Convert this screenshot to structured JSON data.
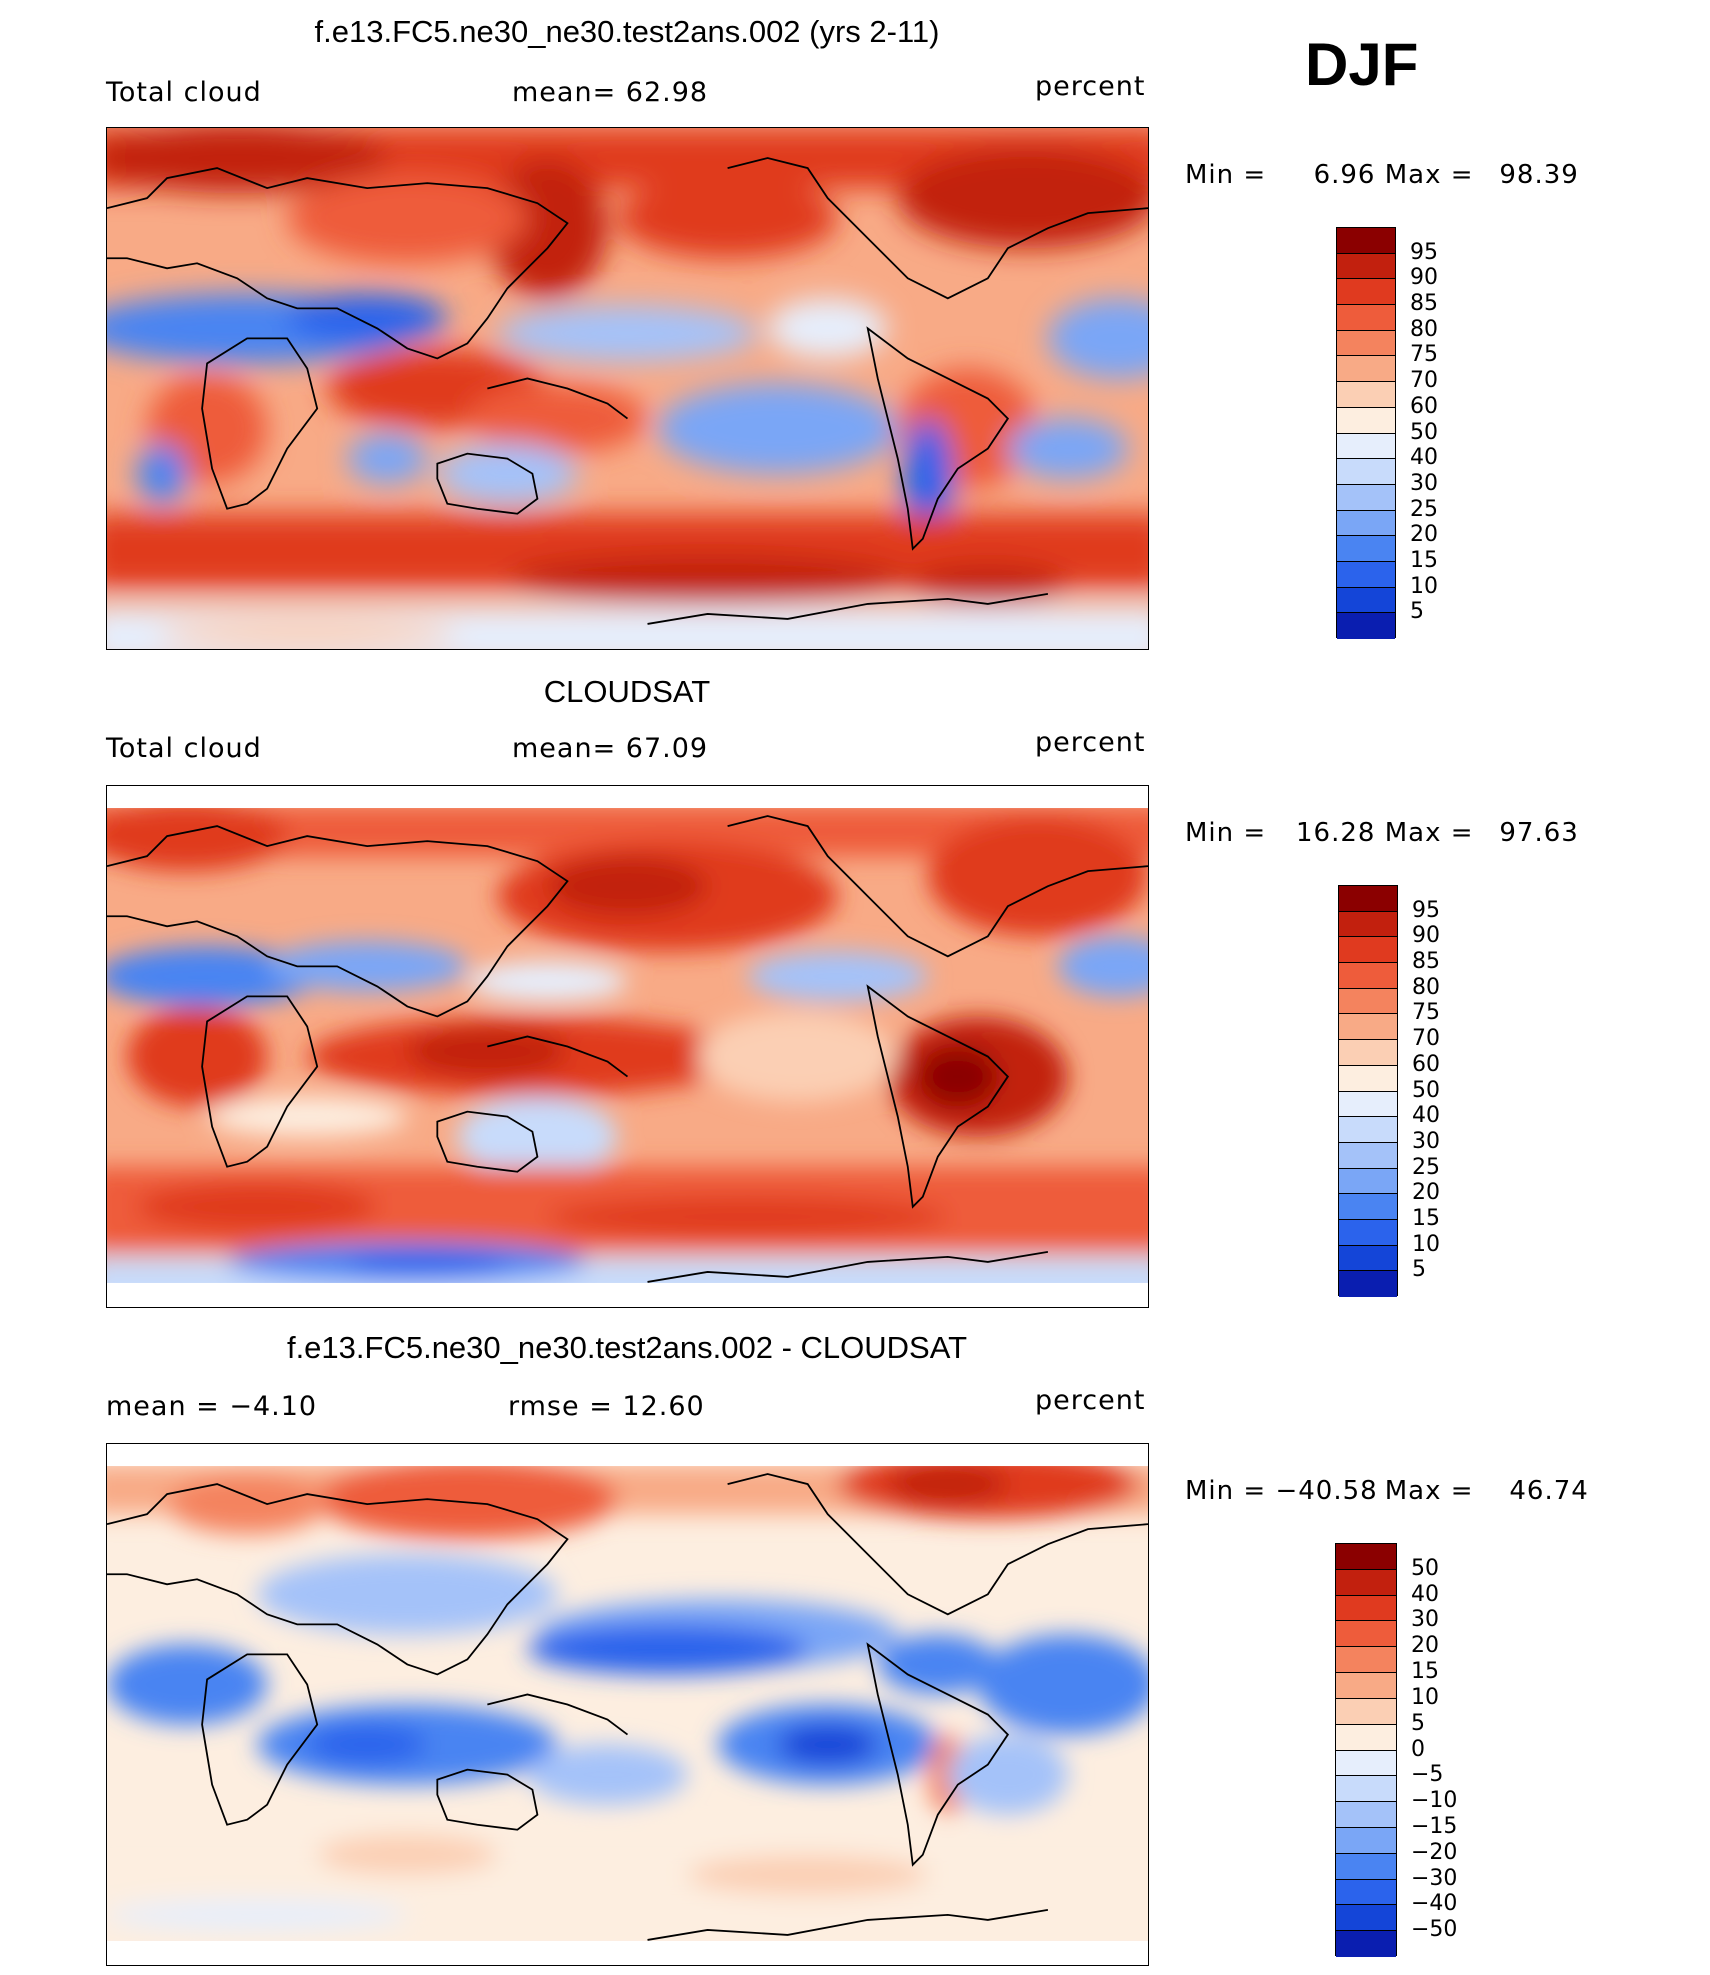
{
  "season": "DJF",
  "palette": [
    "#08006e",
    "#0a1eb0",
    "#1445d8",
    "#2b63ec",
    "#4a84f2",
    "#7aa6f6",
    "#a4c2f9",
    "#c8dbfb",
    "#e6eefc",
    "#fdeee0",
    "#fbcfb4",
    "#f8aa86",
    "#f4835e",
    "#ee5c3b",
    "#e03a1f",
    "#c2200e",
    "#8b0000"
  ],
  "panels": [
    {
      "title": "f.e13.FC5.ne30_ne30.test2ans.002 (yrs 2-11)",
      "left_label": "Total cloud",
      "mid_label": "mean=   62.98",
      "units": "percent",
      "min_label": "Min = ",
      "min_value": "6.96",
      "max_label": "Max = ",
      "max_value": "98.39",
      "colorbar_levels": [
        "95",
        "90",
        "85",
        "80",
        "75",
        "70",
        "60",
        "50",
        "40",
        "30",
        "25",
        "20",
        "15",
        "10",
        "5"
      ]
    },
    {
      "title": "CLOUDSAT",
      "left_label": "Total cloud",
      "mid_label": "mean=   67.09",
      "units": "percent",
      "min_label": "Min = ",
      "min_value": "16.28",
      "max_label": "Max = ",
      "max_value": "97.63",
      "colorbar_levels": [
        "95",
        "90",
        "85",
        "80",
        "75",
        "70",
        "60",
        "50",
        "40",
        "30",
        "25",
        "20",
        "15",
        "10",
        "5"
      ]
    },
    {
      "title": "f.e13.FC5.ne30_ne30.test2ans.002 - CLOUDSAT",
      "left_label": "mean =   −4.10",
      "mid_label": "rmse =   12.60",
      "units": "percent",
      "min_label": "Min = ",
      "min_value": "−40.58",
      "max_label": "Max = ",
      "max_value": "46.74",
      "colorbar_levels": [
        "50",
        "40",
        "30",
        "20",
        "15",
        "10",
        "5",
        "0",
        "−5",
        "−10",
        "−15",
        "−20",
        "−30",
        "−40",
        "−50"
      ]
    }
  ]
}
